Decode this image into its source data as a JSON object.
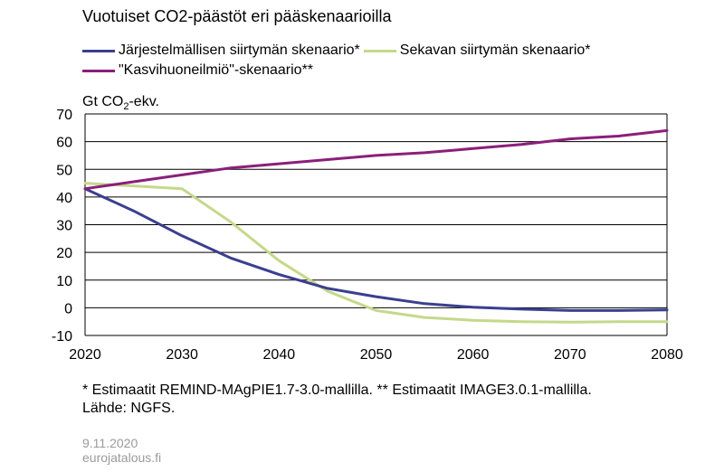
{
  "chart_data": {
    "type": "line",
    "title": "Vuotuiset CO2-päästöt eri pääskenaarioilla",
    "ylabel_prefix": "Gt CO",
    "ylabel_sub": "2",
    "ylabel_suffix": "-ekv.",
    "xlim": [
      2020,
      2080
    ],
    "ylim": [
      -10,
      70
    ],
    "xticks": [
      2020,
      2030,
      2040,
      2050,
      2060,
      2070,
      2080
    ],
    "yticks": [
      70,
      60,
      50,
      40,
      30,
      20,
      10,
      0,
      -10
    ],
    "grid": true,
    "legend_position": "top-left",
    "series": [
      {
        "name": "Järjestelmällisen siirtymän skenaario*",
        "color": "#3b3f8f",
        "x": [
          2020,
          2025,
          2030,
          2035,
          2040,
          2045,
          2050,
          2055,
          2060,
          2065,
          2070,
          2075,
          2080
        ],
        "values": [
          43,
          35,
          26,
          18,
          12,
          7,
          4,
          1.5,
          0.2,
          -0.5,
          -1,
          -1,
          -0.8
        ]
      },
      {
        "name": "Sekavan siirtymän skenaario*",
        "color": "#c5d88a",
        "x": [
          2020,
          2025,
          2030,
          2035,
          2040,
          2045,
          2050,
          2055,
          2060,
          2065,
          2070,
          2075,
          2080
        ],
        "values": [
          45,
          44,
          43,
          31,
          17,
          6,
          -1,
          -3.5,
          -4.5,
          -5,
          -5.2,
          -5,
          -5
        ]
      },
      {
        "name": "\"Kasvihuoneilmiö\"-skenaario**",
        "color": "#8b1f7a",
        "x": [
          2020,
          2025,
          2030,
          2035,
          2040,
          2045,
          2050,
          2055,
          2060,
          2065,
          2070,
          2075,
          2080
        ],
        "values": [
          43,
          45.5,
          48,
          50.5,
          52,
          53.5,
          55,
          56,
          57.5,
          59,
          61,
          62,
          64
        ]
      }
    ]
  },
  "footnote_line1": "* Estimaatit REMIND-MAgPIE1.7-3.0-mallilla.  ** Estimaatit IMAGE3.0.1-mallilla.",
  "footnote_line2": "Lähde: NGFS.",
  "date": "9.11.2020",
  "source_site": "eurojatalous.fi"
}
